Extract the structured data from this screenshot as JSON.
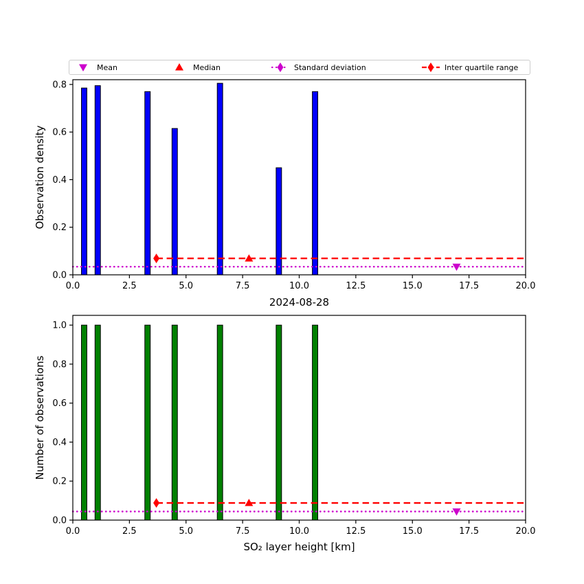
{
  "legend": {
    "items": [
      {
        "label": "Mean",
        "type": "triangle-down",
        "color": "#CC00CC"
      },
      {
        "label": "Median",
        "type": "triangle-up",
        "color": "#FF0000"
      },
      {
        "label": "Standard deviation",
        "type": "line-dotted-diamond",
        "color": "#CC00CC"
      },
      {
        "label": "Inter quartile range",
        "type": "line-dashed-diamond",
        "color": "#FF0000"
      }
    ]
  },
  "xlabel": "SO₂ layer height [km]",
  "chart_data": [
    {
      "type": "bar",
      "title": "",
      "ylabel": "Observation density",
      "x": [
        0.5,
        1.1,
        3.3,
        4.5,
        6.5,
        9.1,
        10.7
      ],
      "values": [
        0.785,
        0.795,
        0.77,
        0.615,
        0.805,
        0.45,
        0.77
      ],
      "bar_width": 0.24,
      "bar_color": "#0000FF",
      "bar_edge_color": "#000000",
      "xlim": [
        0,
        20
      ],
      "ylim": [
        0,
        0.82
      ],
      "grid": false,
      "xtick_values": [
        0,
        2.5,
        5,
        7.5,
        10,
        12.5,
        15,
        17.5,
        20
      ],
      "xtick_labels": [
        "0.0",
        "2.5",
        "5.0",
        "7.5",
        "10.0",
        "12.5",
        "15.0",
        "17.5",
        "20.0"
      ],
      "ytick_values": [
        0,
        0.2,
        0.4,
        0.6,
        0.8
      ],
      "ytick_labels": [
        "0.0",
        "0.2",
        "0.4",
        "0.6",
        "0.8"
      ],
      "stats": {
        "mean_x": 16.95,
        "median_x": 7.78,
        "iqr_start_x": 3.69,
        "iqr_line_y": 0.069,
        "std_line_y": 0.034,
        "mean_color": "#CC00CC",
        "median_color": "#FF0000",
        "std_color": "#CC00CC",
        "iqr_color": "#FF0000"
      }
    },
    {
      "type": "bar",
      "title": "2024-08-28",
      "ylabel": "Number of observations",
      "x": [
        0.5,
        1.1,
        3.3,
        4.5,
        6.5,
        9.1,
        10.7
      ],
      "values": [
        1,
        1,
        1,
        1,
        1,
        1,
        1
      ],
      "bar_width": 0.24,
      "bar_color": "#008000",
      "bar_edge_color": "#000000",
      "xlim": [
        0,
        20
      ],
      "ylim": [
        0,
        1.05
      ],
      "grid": false,
      "xtick_values": [
        0,
        2.5,
        5,
        7.5,
        10,
        12.5,
        15,
        17.5,
        20
      ],
      "xtick_labels": [
        "0.0",
        "2.5",
        "5.0",
        "7.5",
        "10.0",
        "12.5",
        "15.0",
        "17.5",
        "20.0"
      ],
      "ytick_values": [
        0,
        0.2,
        0.4,
        0.6,
        0.8,
        1.0
      ],
      "ytick_labels": [
        "0.0",
        "0.2",
        "0.4",
        "0.6",
        "0.8",
        "1.0"
      ],
      "stats": {
        "mean_x": 16.95,
        "median_x": 7.78,
        "iqr_start_x": 3.69,
        "iqr_line_y": 0.088,
        "std_line_y": 0.044,
        "mean_color": "#CC00CC",
        "median_color": "#FF0000",
        "std_color": "#CC00CC",
        "iqr_color": "#FF0000"
      }
    }
  ]
}
